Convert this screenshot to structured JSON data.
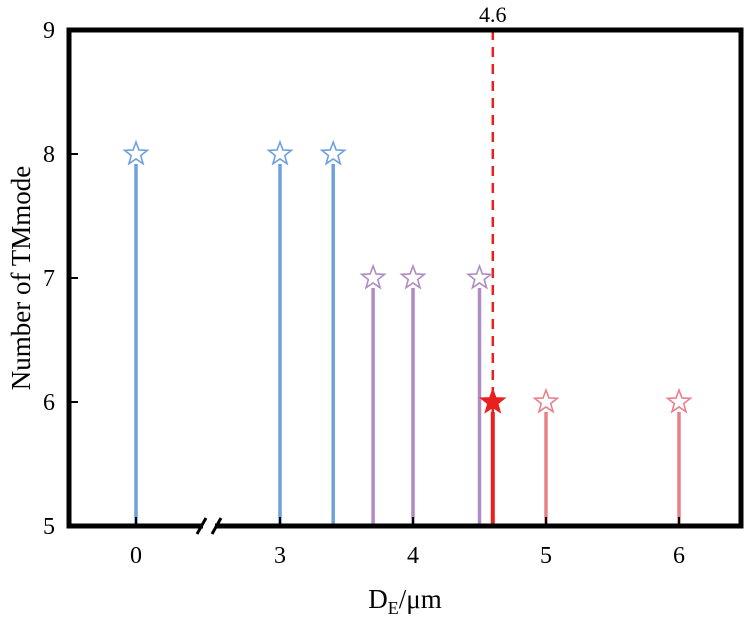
{
  "chart_data": {
    "type": "stem",
    "title": "",
    "xlabel": {
      "main": "D",
      "subscript": "E",
      "suffix": "/μm"
    },
    "ylabel": "Number of TMmode",
    "ylim": [
      5,
      9
    ],
    "yticks": [
      5,
      6,
      7,
      8,
      9
    ],
    "x_axis_break": {
      "between": [
        0,
        3
      ]
    },
    "xticks": [
      {
        "value": 0,
        "label": "0"
      },
      {
        "value": 3,
        "label": "3"
      },
      {
        "value": 4,
        "label": "4"
      },
      {
        "value": 5,
        "label": "5"
      },
      {
        "value": 6,
        "label": "6"
      }
    ],
    "reference_line": {
      "x": 4.6,
      "label": "4.6",
      "style": "dashed",
      "color": "#e8201e"
    },
    "points": [
      {
        "x": 0,
        "y": 8,
        "color": "#6fa0dc",
        "marker": "open-star"
      },
      {
        "x": 3,
        "y": 8,
        "color": "#6fa0dc",
        "marker": "open-star"
      },
      {
        "x": 3.4,
        "y": 8,
        "color": "#6fa0dc",
        "marker": "open-star"
      },
      {
        "x": 3.7,
        "y": 7,
        "color": "#b08cc4",
        "marker": "open-star"
      },
      {
        "x": 4,
        "y": 7,
        "color": "#b08cc4",
        "marker": "open-star"
      },
      {
        "x": 4.5,
        "y": 7,
        "color": "#b08cc4",
        "marker": "open-star"
      },
      {
        "x": 4.6,
        "y": 6,
        "color": "#e8201e",
        "marker": "filled-star"
      },
      {
        "x": 5,
        "y": 6,
        "color": "#e8808a",
        "marker": "open-star"
      },
      {
        "x": 6,
        "y": 6,
        "color": "#e8808a",
        "marker": "open-star"
      }
    ],
    "grid": false,
    "legend": "none"
  }
}
